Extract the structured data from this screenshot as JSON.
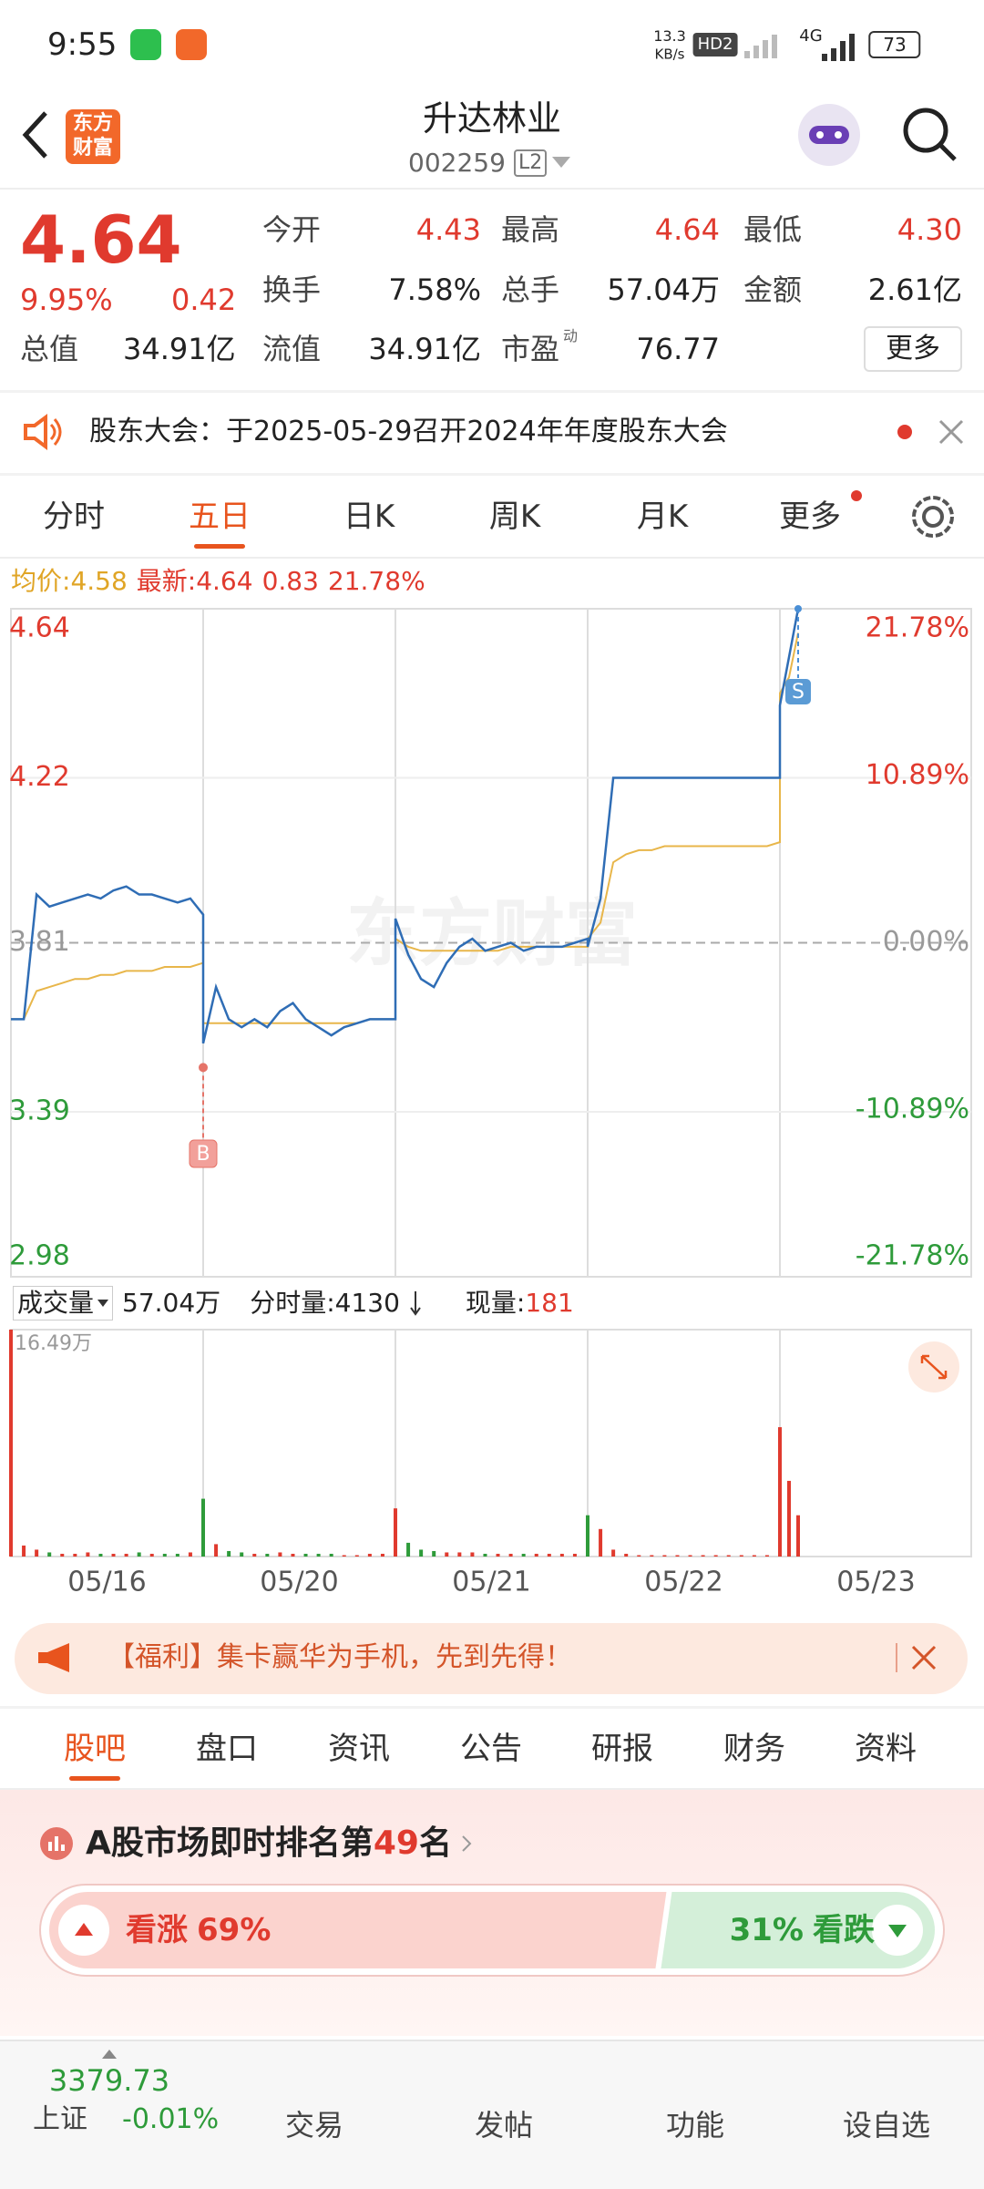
{
  "status_bar": {
    "time": "9:55",
    "speed": "13.3",
    "speed_unit": "KB/s",
    "hd": "HD2",
    "network": "4G",
    "battery": "73"
  },
  "header": {
    "logo_top": "东方",
    "logo_bottom": "财富",
    "name": "升达林业",
    "code": "002259",
    "level": "L2"
  },
  "quote": {
    "price": "4.64",
    "change_pct": "9.95%",
    "change": "0.42",
    "stats": [
      {
        "label": "今开",
        "value": "4.43"
      },
      {
        "label": "最高",
        "value": "4.64"
      },
      {
        "label": "最低",
        "value": "4.30"
      },
      {
        "label": "换手",
        "value": "7.58%"
      },
      {
        "label": "总手",
        "value": "57.04万"
      },
      {
        "label": "金额",
        "value": "2.61亿"
      },
      {
        "label": "总值",
        "value": "34.91亿"
      },
      {
        "label": "流值",
        "value": "34.91亿"
      },
      {
        "label": "市盈",
        "sup": "动",
        "value": "76.77"
      }
    ],
    "more": "更多"
  },
  "notice": {
    "text": "股东大会：于2025-05-29召开2024年年度股东大会"
  },
  "period_tabs": [
    "分时",
    "五日",
    "日K",
    "周K",
    "月K",
    "更多"
  ],
  "period_active": 1,
  "chart": {
    "type": "line",
    "avg_label": "均价:",
    "avg": "4.58",
    "latest_label": "最新:",
    "latest": "4.64",
    "latest_change": "0.83",
    "latest_pct": "21.78%",
    "watermark": "东方财富",
    "x_labels": [
      "05/16",
      "05/20",
      "05/21",
      "05/22",
      "05/23"
    ],
    "ylim": [
      2.98,
      4.64
    ],
    "yticks": [
      4.64,
      4.22,
      3.81,
      3.39,
      2.98
    ],
    "y2lim": [
      -21.78,
      21.78
    ],
    "y2ticks": [
      {
        "value": 21.78,
        "label": "21.78%"
      },
      {
        "value": 10.89,
        "label": "10.89%"
      },
      {
        "value": 0,
        "label": "0.00%"
      },
      {
        "value": -10.89,
        "label": "-10.89%"
      },
      {
        "value": -21.78,
        "label": "-21.78%"
      }
    ],
    "price_color": "#2f6db5",
    "avg_color": "#e8b64a",
    "price_values": [
      3.62,
      3.62,
      3.93,
      3.9,
      3.91,
      3.92,
      3.93,
      3.92,
      3.94,
      3.95,
      3.93,
      3.93,
      3.92,
      3.91,
      3.92,
      3.88,
      3.56,
      3.7,
      3.62,
      3.6,
      3.62,
      3.6,
      3.64,
      3.66,
      3.62,
      3.6,
      3.58,
      3.6,
      3.61,
      3.62,
      3.62,
      3.62,
      3.87,
      3.78,
      3.72,
      3.7,
      3.76,
      3.8,
      3.82,
      3.79,
      3.8,
      3.81,
      3.79,
      3.8,
      3.8,
      3.8,
      3.81,
      3.82,
      3.8,
      3.92,
      4.22,
      4.22,
      4.22,
      4.22,
      4.22,
      4.22,
      4.22,
      4.22,
      4.22,
      4.22,
      4.22,
      4.22,
      4.22,
      4.22,
      4.4,
      4.52,
      4.64
    ],
    "avg_values": [
      3.62,
      3.62,
      3.69,
      3.7,
      3.71,
      3.72,
      3.72,
      3.73,
      3.73,
      3.74,
      3.74,
      3.74,
      3.75,
      3.75,
      3.75,
      3.76,
      3.61,
      3.61,
      3.61,
      3.61,
      3.61,
      3.61,
      3.61,
      3.61,
      3.61,
      3.61,
      3.61,
      3.61,
      3.61,
      3.62,
      3.62,
      3.62,
      3.82,
      3.8,
      3.79,
      3.79,
      3.79,
      3.79,
      3.79,
      3.79,
      3.79,
      3.8,
      3.8,
      3.8,
      3.8,
      3.8,
      3.8,
      3.8,
      3.82,
      3.86,
      4.01,
      4.03,
      4.04,
      4.04,
      4.05,
      4.05,
      4.05,
      4.05,
      4.05,
      4.05,
      4.05,
      4.05,
      4.05,
      4.06,
      4.43,
      4.47,
      4.58
    ],
    "buy": {
      "label": "B",
      "value": 3.5
    },
    "sell": {
      "label": "S",
      "value": 4.64
    }
  },
  "volume": {
    "label": "成交量",
    "total": "57.04万",
    "tick_label": "分时量:",
    "tick_value": "4130",
    "now_label": "现量:",
    "now_value": "181",
    "ylim": [
      0,
      16.49
    ],
    "yticks": [
      {
        "value": 16.49,
        "label": "16.49万"
      }
    ],
    "up_color": "#e03a2e",
    "down_color": "#2e9b3a",
    "values": [
      16.49,
      0.8,
      0.5,
      0.3,
      0.2,
      0.2,
      0.3,
      0.2,
      0.2,
      0.2,
      0.3,
      0.2,
      0.2,
      0.2,
      0.3,
      0.6,
      4.2,
      0.9,
      0.4,
      0.3,
      0.2,
      0.2,
      0.3,
      0.2,
      0.2,
      0.2,
      0.2,
      0.1,
      0.1,
      0.2,
      0.2,
      0.3,
      3.5,
      1.0,
      0.5,
      0.4,
      0.3,
      0.3,
      0.3,
      0.2,
      0.2,
      0.2,
      0.2,
      0.2,
      0.2,
      0.2,
      0.2,
      0.3,
      3.0,
      2.0,
      0.5,
      0.2,
      0.1,
      0.1,
      0.1,
      0.1,
      0.1,
      0.1,
      0.1,
      0.1,
      0.1,
      0.1,
      0.1,
      0.1,
      9.4,
      5.5,
      3.0
    ]
  },
  "banner": {
    "text": "【福利】集卡赢华为手机，先到先得！"
  },
  "sub_tabs": [
    "股吧",
    "盘口",
    "资讯",
    "公告",
    "研报",
    "财务",
    "资料"
  ],
  "sub_active": 0,
  "ranking": {
    "prefix": "A股市场即时排名第",
    "rank": "49",
    "suffix": "名"
  },
  "sentiment": {
    "bull": {
      "label": "看涨",
      "value": 69,
      "value_label": "69%"
    },
    "bear": {
      "label": "看跌",
      "value": 31,
      "value_label": "31%"
    }
  },
  "bottom_nav": {
    "index_value": "3379.73",
    "index_name": "上证",
    "index_change": "-0.01%",
    "items": [
      "交易",
      "发帖",
      "功能",
      "设自选"
    ]
  }
}
